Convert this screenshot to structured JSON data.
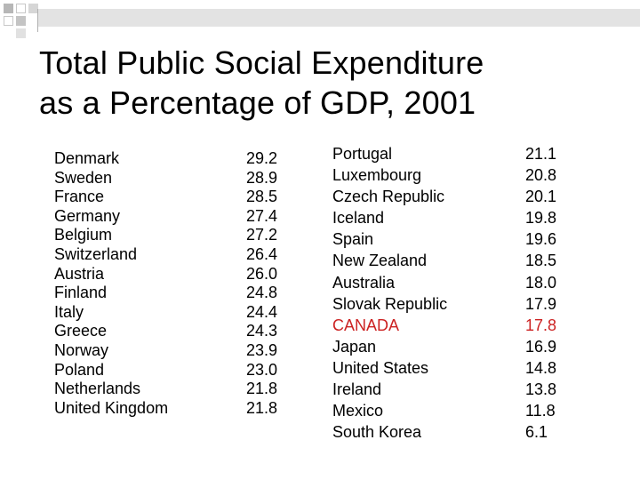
{
  "colors": {
    "highlight": "#cc2222",
    "text": "#000000",
    "accent_bar": "#e3e3e3"
  },
  "title": {
    "line1": "Total Public Social Expenditure",
    "line2": "as a Percentage of GDP, 2001"
  },
  "table": {
    "left": [
      {
        "country": "Denmark",
        "value": "29.2"
      },
      {
        "country": "Sweden",
        "value": "28.9"
      },
      {
        "country": "France",
        "value": "28.5"
      },
      {
        "country": "Germany",
        "value": "27.4"
      },
      {
        "country": "Belgium",
        "value": "27.2"
      },
      {
        "country": "Switzerland",
        "value": "26.4"
      },
      {
        "country": "Austria",
        "value": "26.0"
      },
      {
        "country": "Finland",
        "value": "24.8"
      },
      {
        "country": "Italy",
        "value": "24.4"
      },
      {
        "country": "Greece",
        "value": "24.3"
      },
      {
        "country": "Norway",
        "value": "23.9"
      },
      {
        "country": "Poland",
        "value": "23.0"
      },
      {
        "country": "Netherlands",
        "value": "21.8"
      },
      {
        "country": "United Kingdom",
        "value": "21.8"
      }
    ],
    "right": [
      {
        "country": "Portugal",
        "value": "21.1"
      },
      {
        "country": "Luxembourg",
        "value": "20.8"
      },
      {
        "country": "Czech Republic",
        "value": "20.1"
      },
      {
        "country": "Iceland",
        "value": "19.8"
      },
      {
        "country": "Spain",
        "value": "19.6"
      },
      {
        "country": "New Zealand",
        "value": "18.5"
      },
      {
        "country": "Australia",
        "value": "18.0"
      },
      {
        "country": "Slovak Republic",
        "value": "17.9"
      },
      {
        "country": "CANADA",
        "value": "17.8",
        "highlight": true
      },
      {
        "country": "Japan",
        "value": "16.9"
      },
      {
        "country": "United States",
        "value": "14.8"
      },
      {
        "country": "Ireland",
        "value": "13.8"
      },
      {
        "country": "Mexico",
        "value": "11.8"
      },
      {
        "country": "South Korea",
        "value": "6.1"
      }
    ]
  }
}
